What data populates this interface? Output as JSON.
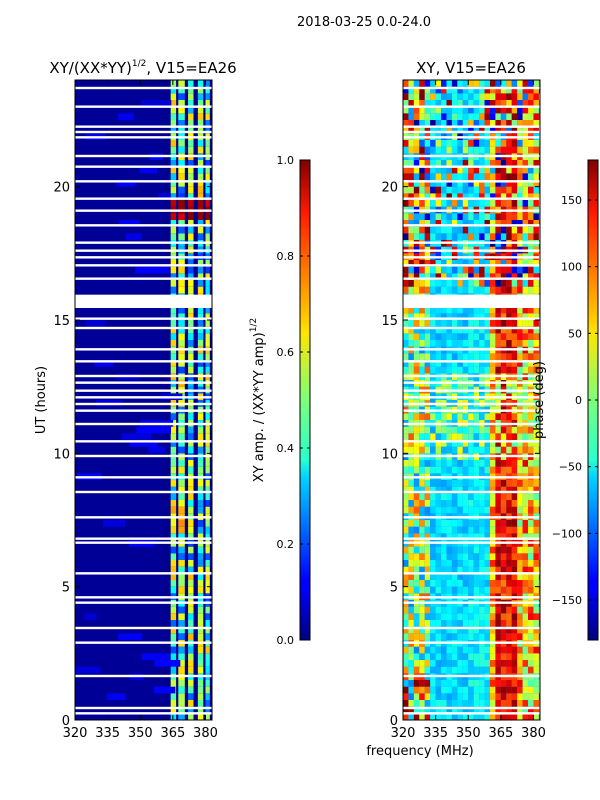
{
  "suptitle": "2018-03-25 0.0-24.0",
  "shared_xlabel": "frequency (MHz)",
  "chart_data": [
    {
      "type": "heatmap",
      "title_main": "XY/(XX*YY)",
      "title_sup": "1/2",
      "title_tail": ", V15=EA26",
      "ylabel": "UT (hours)",
      "xlim": [
        320,
        383
      ],
      "ylim": [
        0,
        24
      ],
      "x_ticks": [
        320,
        335,
        350,
        365,
        380
      ],
      "y_ticks": [
        0,
        5,
        10,
        15,
        20
      ],
      "colorbar": {
        "label_main": "XY amp. / (XX*YY amp)",
        "label_sup": "1/2",
        "range": [
          0.0,
          1.0
        ],
        "ticks": [
          "0.0",
          "0.2",
          "0.4",
          "0.6",
          "0.8",
          "1.0"
        ],
        "tick_values": [
          0.0,
          0.2,
          0.4,
          0.6,
          0.8,
          1.0
        ]
      },
      "gaps_hours": [
        0.25,
        0.45,
        1.65,
        2.9,
        3.45,
        4.4,
        4.6,
        5.5,
        6.65,
        6.8,
        7.6,
        8.55,
        9.1,
        9.9,
        10.45,
        11.1,
        11.6,
        11.85,
        12.1,
        12.35,
        12.65,
        12.9,
        13.45,
        13.9,
        14.7,
        15.05,
        15.5,
        15.7,
        16.55,
        17.05,
        17.35,
        17.6,
        17.9,
        18.55,
        19.1,
        19.55,
        20.2,
        20.75,
        21.15,
        21.85,
        22.05,
        22.25,
        23.0,
        23.7
      ],
      "band_hours": [
        15.45,
        15.95
      ]
    },
    {
      "type": "heatmap",
      "title_main": "XY, V15=EA26",
      "title_sup": "",
      "title_tail": "",
      "ylabel": "",
      "xlim": [
        320,
        383
      ],
      "ylim": [
        0,
        24
      ],
      "x_ticks": [
        320,
        335,
        350,
        365,
        380
      ],
      "y_ticks": [
        0,
        5,
        10,
        15,
        20
      ],
      "colorbar": {
        "label_main": "phase (deg)",
        "label_sup": "",
        "range": [
          -180,
          180
        ],
        "ticks": [
          "−150",
          "−100",
          "−50",
          "0",
          "50",
          "100",
          "150"
        ],
        "tick_values": [
          -150,
          -100,
          -50,
          0,
          50,
          100,
          150
        ]
      },
      "gaps_hours": [
        0.25,
        0.45,
        1.65,
        2.9,
        3.45,
        4.4,
        4.6,
        5.5,
        6.65,
        6.8,
        7.6,
        8.55,
        9.1,
        9.9,
        10.45,
        11.1,
        11.6,
        11.85,
        12.1,
        12.35,
        12.65,
        12.9,
        13.45,
        13.9,
        14.7,
        15.05,
        15.5,
        15.7,
        16.55,
        17.05,
        17.35,
        17.6,
        17.9,
        18.55,
        19.1,
        19.55,
        20.2,
        20.75,
        21.15,
        21.85,
        22.05,
        22.25,
        23.0,
        23.7
      ],
      "band_hours": [
        15.45,
        15.95
      ]
    }
  ]
}
